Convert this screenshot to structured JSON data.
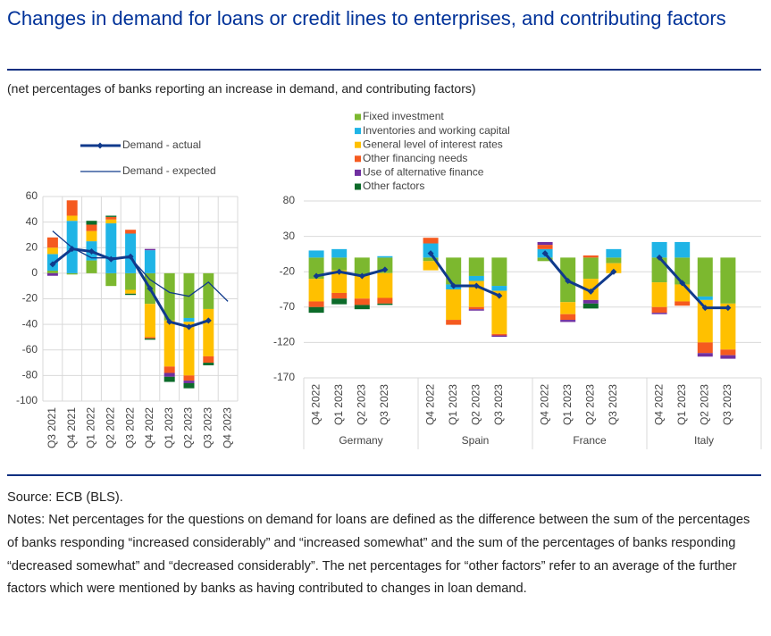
{
  "title": "Changes in demand for loans or credit lines to enterprises, and contributing factors",
  "subtitle": "(net percentages of banks reporting an increase in demand, and contributing factors)",
  "source": "Source: ECB (BLS).",
  "notes": "Notes: Net percentages for the questions on demand for loans are defined as the difference between the sum of the percentages of banks responding “increased considerably” and “increased somewhat” and the sum of the percentages of banks responding “decreased somewhat” and “decreased considerably”. The net percentages for “other factors” refer to an average of the further factors which were mentioned by banks as having contributed to changes in loan demand.",
  "chart_data": [
    {
      "type": "bar",
      "categories": [
        "Q3 2021",
        "Q4 2021",
        "Q1 2022",
        "Q2 2022",
        "Q3 2022",
        "Q4 2022",
        "Q1 2023",
        "Q2 2023",
        "Q3 2023",
        "Q4 2023"
      ],
      "ylim": [
        -100,
        60
      ],
      "yticks": [
        60,
        40,
        20,
        0,
        -20,
        -40,
        -60,
        -80,
        -100
      ],
      "grid": true,
      "series": [
        {
          "name": "Fixed investment",
          "color": "#7cb82f",
          "values": [
            2,
            -1,
            10,
            -10,
            -13,
            -24,
            -37,
            -35,
            -28,
            null
          ]
        },
        {
          "name": "Inventories and working capital",
          "color": "#1fb4e6",
          "values": [
            13,
            41,
            15,
            39,
            31,
            18,
            0,
            -3,
            0,
            null
          ]
        },
        {
          "name": "General level of interest rates",
          "color": "#ffc000",
          "values": [
            5,
            4,
            8,
            3,
            -3,
            -26,
            -36,
            -42,
            -37,
            null
          ]
        },
        {
          "name": "Other financing needs",
          "color": "#f55a1f",
          "values": [
            8,
            12,
            5,
            2,
            3,
            -1,
            -5,
            -4,
            -5,
            null
          ]
        },
        {
          "name": "Use of alternative finance",
          "color": "#7030a0",
          "values": [
            -2,
            0,
            0,
            0,
            0,
            1,
            -3,
            -2,
            0,
            null
          ]
        },
        {
          "name": "Other factors",
          "color": "#0c6b2a",
          "values": [
            0,
            0,
            3,
            1,
            -1,
            -1,
            -4,
            -4,
            -2,
            null
          ]
        },
        {
          "name": "Demand - actual",
          "type": "line",
          "color": "#103a8c",
          "values": [
            7,
            19,
            17,
            11,
            13,
            -12,
            -38,
            -42,
            -37,
            null
          ]
        },
        {
          "name": "Demand - expected",
          "type": "line",
          "color": "#103a8c",
          "values": [
            33,
            20,
            12,
            12,
            12,
            -5,
            -15,
            -18,
            -7,
            -22
          ]
        }
      ]
    },
    {
      "type": "bar",
      "groups": [
        "Germany",
        "Spain",
        "France",
        "Italy"
      ],
      "categories": [
        "Q4 2022",
        "Q1 2023",
        "Q2 2023",
        "Q3 2023"
      ],
      "ylim": [
        -170,
        80
      ],
      "yticks": [
        80,
        30,
        -20,
        -70,
        -120,
        -170
      ],
      "grid": true,
      "series": [
        {
          "values": [
            [
              -30,
              -18,
              -25,
              -22
            ],
            [
              -5,
              -38,
              -26,
              -40
            ],
            [
              -5,
              -63,
              -30,
              -8
            ],
            [
              -35,
              -38,
              -55,
              -65
            ]
          ]
        },
        {
          "values": [
            [
              10,
              12,
              0,
              2
            ],
            [
              20,
              -7,
              -7,
              -7
            ],
            [
              12,
              0,
              0,
              12
            ],
            [
              22,
              22,
              -5,
              0
            ]
          ]
        },
        {
          "values": [
            [
              -32,
              -32,
              -33,
              -35
            ],
            [
              -13,
              -43,
              -37,
              -61
            ],
            [
              0,
              -17,
              -30,
              -14
            ],
            [
              -35,
              -24,
              -60,
              -65
            ]
          ]
        },
        {
          "values": [
            [
              -8,
              -8,
              -9,
              -8
            ],
            [
              8,
              -7,
              -3,
              -2
            ],
            [
              6,
              -8,
              3,
              0
            ],
            [
              -8,
              -6,
              -15,
              -8
            ]
          ]
        },
        {
          "values": [
            [
              0,
              0,
              0,
              0
            ],
            [
              0,
              0,
              -2,
              -2
            ],
            [
              4,
              -3,
              -5,
              0
            ],
            [
              -2,
              0,
              -5,
              -5
            ]
          ]
        },
        {
          "values": [
            [
              -8,
              -8,
              -6,
              -2
            ],
            [
              0,
              0,
              0,
              0
            ],
            [
              0,
              0,
              -7,
              0
            ],
            [
              0,
              0,
              0,
              0
            ]
          ]
        }
      ],
      "actual": [
        [
          -26,
          -20,
          -26,
          -17
        ],
        [
          6,
          -40,
          -40,
          -54
        ],
        [
          6,
          -33,
          -48,
          -20
        ],
        [
          0,
          -36,
          -71,
          -71
        ]
      ]
    }
  ]
}
